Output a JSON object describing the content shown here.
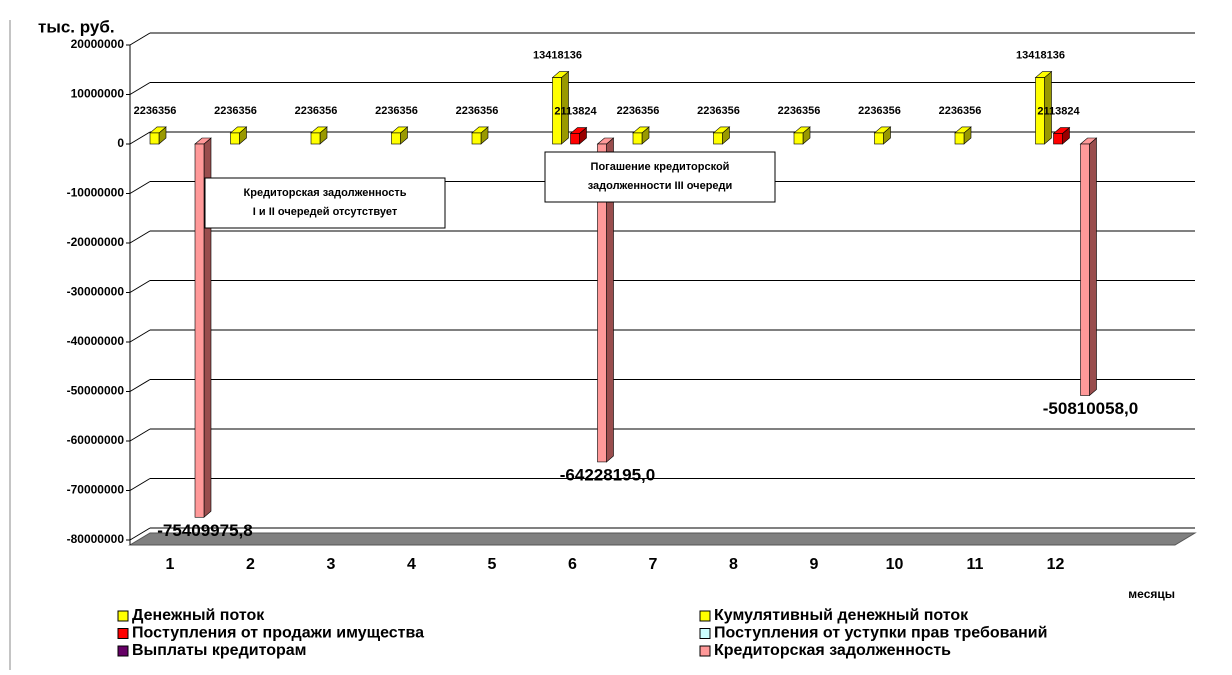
{
  "chart_data": {
    "type": "bar3d",
    "y_label": "тыс. руб.",
    "x_label": "месяцы",
    "categories": [
      "1",
      "2",
      "3",
      "4",
      "5",
      "6",
      "7",
      "8",
      "9",
      "10",
      "11",
      "12"
    ],
    "ylim": [
      -80000000,
      20000000
    ],
    "yticks": [
      -80000000,
      -70000000,
      -60000000,
      -50000000,
      -40000000,
      -30000000,
      -20000000,
      -10000000,
      0,
      10000000,
      20000000
    ],
    "grid": true,
    "series": [
      {
        "name": "Денежный поток",
        "color": "#ffff00",
        "side": "#999900",
        "values": [
          2236356,
          2236356,
          2236356,
          2236356,
          2236356,
          13418136,
          2236356,
          2236356,
          2236356,
          2236356,
          2236356,
          13418136
        ]
      },
      {
        "name": "Кумулятивный денежный поток",
        "color": "#ffff00",
        "side": "#999900",
        "values": [
          null,
          null,
          null,
          null,
          null,
          null,
          null,
          null,
          null,
          null,
          null,
          null
        ]
      },
      {
        "name": "Поступления от продажи имущества",
        "color": "#ff0000",
        "side": "#990000",
        "values": [
          null,
          null,
          null,
          null,
          null,
          2113824,
          null,
          null,
          null,
          null,
          null,
          2113824
        ]
      },
      {
        "name": "Поступления от уступки прав требований",
        "color": "#ccffff",
        "side": "#88aaaa",
        "values": [
          null,
          null,
          null,
          null,
          null,
          null,
          null,
          null,
          null,
          null,
          null,
          null
        ]
      },
      {
        "name": "Выплаты кредиторам",
        "color": "#660066",
        "side": "#330033",
        "values": [
          null,
          null,
          null,
          null,
          null,
          null,
          null,
          null,
          null,
          null,
          null,
          null
        ]
      },
      {
        "name": "Кредиторская задолженность",
        "color": "#ff9999",
        "side": "#994d4d",
        "values": [
          -75409975.8,
          null,
          null,
          null,
          null,
          -64228195.0,
          null,
          null,
          null,
          null,
          null,
          -50810058.0
        ],
        "value_labels": [
          "-75409975,8",
          null,
          null,
          null,
          null,
          "-64228195,0",
          null,
          null,
          null,
          null,
          null,
          "-50810058,0"
        ]
      }
    ],
    "annotations": [
      {
        "lines": [
          "Кредиторская задолженность",
          "I и II очередей отсутствует"
        ]
      },
      {
        "lines": [
          "Погашение кредиторской",
          "задолженности III очереди"
        ]
      }
    ]
  }
}
